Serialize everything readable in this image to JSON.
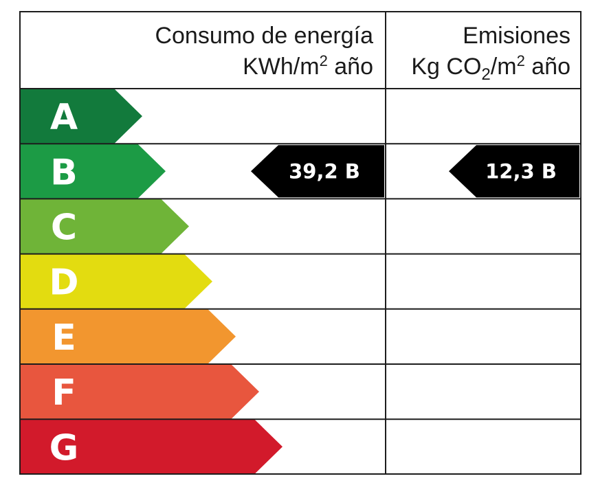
{
  "header": {
    "energy_title": "Consumo de energía",
    "energy_unit_prefix": "KWh/m",
    "energy_unit_sup": "2",
    "energy_unit_suffix": " año",
    "emissions_title": "Emisiones",
    "emissions_unit_kg": "Kg CO",
    "emissions_unit_sub": "2",
    "emissions_unit_mid": "/m",
    "emissions_unit_sup": "2",
    "emissions_unit_suffix": " año"
  },
  "classes": [
    {
      "letter": "A",
      "color": "#127a3c"
    },
    {
      "letter": "B",
      "color": "#1c9b45"
    },
    {
      "letter": "C",
      "color": "#6fb438"
    },
    {
      "letter": "D",
      "color": "#e3dc10"
    },
    {
      "letter": "E",
      "color": "#f2962f"
    },
    {
      "letter": "F",
      "color": "#e8563e"
    },
    {
      "letter": "G",
      "color": "#d21a2b"
    }
  ],
  "ratings": {
    "energy": {
      "text": "39,2 B",
      "class": "B",
      "color": "#000000"
    },
    "emissions": {
      "text": "12,3 B",
      "class": "B",
      "color": "#000000"
    }
  }
}
